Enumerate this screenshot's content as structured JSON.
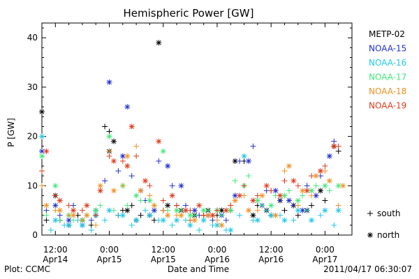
{
  "chart_data": {
    "type": "scatter",
    "title": "Hemispheric Power [GW]",
    "ylabel": "P [GW]",
    "xlabel": "Date and Time",
    "plot_credit": "Plot: CCMC",
    "timestamp": "2011/04/17 06:30:07",
    "ylim": [
      0,
      43
    ],
    "xlim_hours": [
      -3,
      39
    ],
    "yticks": [
      0,
      10,
      20,
      30,
      40
    ],
    "xticks": [
      {
        "h": 0,
        "line1": "12:00",
        "line2": "Apr14"
      },
      {
        "h": 12,
        "line1": "0:00",
        "line2": "Apr15"
      },
      {
        "h": 24,
        "line1": "12:00",
        "line2": "Apr15"
      },
      {
        "h": 36,
        "line1": "0:00",
        "line2": "Apr16"
      },
      {
        "h": 48,
        "line1": "12:00",
        "line2": "Apr16"
      },
      {
        "h": 60,
        "line1": "0:00",
        "line2": "Apr17"
      }
    ],
    "grid": false,
    "legend_position": "right",
    "marker_legend": [
      {
        "symbol": "+",
        "label": "south"
      },
      {
        "symbol": "*",
        "label": "north"
      }
    ],
    "series": [
      {
        "name": "METP-02",
        "color": "#000000",
        "south": [
          [
            -2,
            3
          ],
          [
            1,
            3
          ],
          [
            5,
            4
          ],
          [
            8,
            2
          ],
          [
            11,
            22
          ],
          [
            12,
            21
          ],
          [
            14,
            4
          ],
          [
            15,
            5
          ],
          [
            17,
            6
          ],
          [
            19,
            4
          ],
          [
            22,
            3
          ],
          [
            24,
            5
          ],
          [
            27,
            6
          ],
          [
            30,
            3
          ],
          [
            33,
            4
          ],
          [
            36,
            4
          ],
          [
            39,
            5
          ],
          [
            42,
            15
          ],
          [
            45,
            6
          ],
          [
            48,
            4
          ],
          [
            51,
            5
          ],
          [
            54,
            4
          ],
          [
            57,
            6
          ],
          [
            60,
            7
          ],
          [
            63,
            17
          ]
        ],
        "north": [
          [
            -3,
            25
          ],
          [
            0,
            8
          ],
          [
            3,
            2
          ],
          [
            6,
            3
          ],
          [
            9,
            4
          ],
          [
            12,
            17
          ],
          [
            13,
            19
          ],
          [
            16,
            5
          ],
          [
            18,
            3
          ],
          [
            21,
            4
          ],
          [
            23,
            39
          ],
          [
            25,
            6
          ],
          [
            28,
            5
          ],
          [
            31,
            4
          ],
          [
            34,
            5
          ],
          [
            37,
            5
          ],
          [
            40,
            15
          ],
          [
            44,
            4
          ],
          [
            47,
            5
          ],
          [
            50,
            7
          ],
          [
            53,
            6
          ],
          [
            56,
            5
          ],
          [
            59,
            9
          ],
          [
            62,
            18
          ]
        ]
      },
      {
        "name": "NOAA-15",
        "color": "#1f2fd0",
        "south": [
          [
            -2,
            5
          ],
          [
            1,
            4
          ],
          [
            4,
            6
          ],
          [
            8,
            3
          ],
          [
            11,
            11
          ],
          [
            14,
            13
          ],
          [
            17,
            12
          ],
          [
            20,
            7
          ],
          [
            23,
            15
          ],
          [
            26,
            10
          ],
          [
            29,
            6
          ],
          [
            32,
            4
          ],
          [
            35,
            3
          ],
          [
            38,
            3
          ],
          [
            41,
            15
          ],
          [
            44,
            18
          ],
          [
            47,
            9
          ],
          [
            50,
            7
          ],
          [
            53,
            6
          ],
          [
            56,
            10
          ],
          [
            59,
            12
          ],
          [
            62,
            19
          ]
        ],
        "north": [
          [
            -3,
            17
          ],
          [
            0,
            6
          ],
          [
            3,
            3
          ],
          [
            6,
            2
          ],
          [
            9,
            5
          ],
          [
            12,
            31
          ],
          [
            15,
            16
          ],
          [
            16,
            26
          ],
          [
            19,
            9
          ],
          [
            22,
            5
          ],
          [
            25,
            14
          ],
          [
            28,
            10
          ],
          [
            31,
            5
          ],
          [
            34,
            4
          ],
          [
            37,
            4
          ],
          [
            40,
            8
          ],
          [
            43,
            15
          ],
          [
            46,
            6
          ],
          [
            49,
            9
          ],
          [
            52,
            7
          ],
          [
            55,
            5
          ],
          [
            58,
            8
          ],
          [
            61,
            16
          ]
        ]
      },
      {
        "name": "NOAA-16",
        "color": "#20c8e8",
        "south": [
          [
            -1,
            1
          ],
          [
            2,
            2
          ],
          [
            5,
            3
          ],
          [
            8,
            1
          ],
          [
            11,
            3
          ],
          [
            14,
            4
          ],
          [
            17,
            2
          ],
          [
            20,
            5
          ],
          [
            23,
            3
          ],
          [
            26,
            2
          ],
          [
            29,
            3
          ],
          [
            32,
            1
          ],
          [
            35,
            2
          ],
          [
            38,
            1
          ],
          [
            41,
            4
          ],
          [
            44,
            3
          ],
          [
            47,
            5
          ],
          [
            50,
            4
          ],
          [
            53,
            3
          ],
          [
            56,
            5
          ],
          [
            59,
            4
          ],
          [
            62,
            2
          ]
        ],
        "north": [
          [
            -3,
            20
          ],
          [
            0,
            3
          ],
          [
            3,
            2
          ],
          [
            6,
            2
          ],
          [
            9,
            4
          ],
          [
            12,
            5
          ],
          [
            15,
            4
          ],
          [
            18,
            3
          ],
          [
            21,
            4
          ],
          [
            24,
            3
          ],
          [
            27,
            3
          ],
          [
            30,
            2
          ],
          [
            33,
            3
          ],
          [
            36,
            2
          ],
          [
            39,
            1
          ],
          [
            42,
            16
          ],
          [
            45,
            3
          ],
          [
            48,
            4
          ],
          [
            51,
            3
          ],
          [
            54,
            5
          ],
          [
            57,
            3
          ],
          [
            60,
            5
          ],
          [
            63,
            5
          ]
        ]
      },
      {
        "name": "NOAA-17",
        "color": "#40e878",
        "south": [
          [
            -2,
            4
          ],
          [
            1,
            3
          ],
          [
            4,
            3
          ],
          [
            7,
            4
          ],
          [
            10,
            6
          ],
          [
            13,
            5
          ],
          [
            16,
            6
          ],
          [
            19,
            7
          ],
          [
            22,
            6
          ],
          [
            25,
            5
          ],
          [
            28,
            5
          ],
          [
            31,
            4
          ],
          [
            34,
            5
          ],
          [
            37,
            4
          ],
          [
            40,
            11
          ],
          [
            43,
            12
          ],
          [
            46,
            6
          ],
          [
            49,
            8
          ],
          [
            52,
            9
          ],
          [
            55,
            8
          ],
          [
            58,
            10
          ],
          [
            61,
            9
          ]
        ],
        "north": [
          [
            -3,
            16
          ],
          [
            0,
            10
          ],
          [
            3,
            4
          ],
          [
            6,
            3
          ],
          [
            9,
            5
          ],
          [
            12,
            20
          ],
          [
            15,
            10
          ],
          [
            18,
            8
          ],
          [
            21,
            7
          ],
          [
            24,
            17
          ],
          [
            27,
            5
          ],
          [
            30,
            4
          ],
          [
            33,
            5
          ],
          [
            36,
            5
          ],
          [
            39,
            5
          ],
          [
            42,
            10
          ],
          [
            45,
            7
          ],
          [
            48,
            6
          ],
          [
            51,
            8
          ],
          [
            54,
            7
          ],
          [
            57,
            9
          ],
          [
            60,
            10
          ],
          [
            63,
            10
          ]
        ]
      },
      {
        "name": "NOAA-18",
        "color": "#f09020",
        "south": [
          [
            -3,
            10
          ],
          [
            0,
            5
          ],
          [
            3,
            4
          ],
          [
            6,
            3
          ],
          [
            9,
            2
          ],
          [
            12,
            17
          ],
          [
            15,
            10
          ],
          [
            18,
            18
          ],
          [
            21,
            8
          ],
          [
            24,
            5
          ],
          [
            27,
            4
          ],
          [
            30,
            3
          ],
          [
            33,
            4
          ],
          [
            36,
            3
          ],
          [
            39,
            6
          ],
          [
            42,
            8
          ],
          [
            45,
            5
          ],
          [
            48,
            9
          ],
          [
            51,
            13
          ],
          [
            54,
            6
          ],
          [
            57,
            8
          ],
          [
            60,
            13
          ],
          [
            63,
            6
          ]
        ],
        "north": [
          [
            -2,
            6
          ],
          [
            1,
            5
          ],
          [
            4,
            4
          ],
          [
            7,
            4
          ],
          [
            10,
            10
          ],
          [
            13,
            9
          ],
          [
            16,
            16
          ],
          [
            19,
            9
          ],
          [
            22,
            6
          ],
          [
            25,
            4
          ],
          [
            28,
            4
          ],
          [
            31,
            3
          ],
          [
            34,
            4
          ],
          [
            37,
            2
          ],
          [
            40,
            7
          ],
          [
            43,
            5
          ],
          [
            46,
            8
          ],
          [
            49,
            4
          ],
          [
            52,
            14
          ],
          [
            55,
            9
          ],
          [
            58,
            12
          ],
          [
            61,
            11
          ],
          [
            64,
            10
          ]
        ]
      },
      {
        "name": "NOAA-19",
        "color": "#e03818",
        "south": [
          [
            -3,
            13
          ],
          [
            0,
            8
          ],
          [
            3,
            6
          ],
          [
            6,
            5
          ],
          [
            9,
            4
          ],
          [
            12,
            16
          ],
          [
            15,
            15
          ],
          [
            18,
            16
          ],
          [
            21,
            10
          ],
          [
            24,
            7
          ],
          [
            27,
            6
          ],
          [
            30,
            5
          ],
          [
            33,
            4
          ],
          [
            36,
            5
          ],
          [
            39,
            6
          ],
          [
            42,
            10
          ],
          [
            45,
            8
          ],
          [
            48,
            9
          ],
          [
            51,
            11
          ],
          [
            54,
            10
          ],
          [
            57,
            12
          ],
          [
            60,
            14
          ],
          [
            63,
            18
          ]
        ],
        "north": [
          [
            -2,
            17
          ],
          [
            1,
            7
          ],
          [
            4,
            5
          ],
          [
            7,
            6
          ],
          [
            10,
            9
          ],
          [
            13,
            15
          ],
          [
            16,
            14
          ],
          [
            17,
            22
          ],
          [
            20,
            11
          ],
          [
            23,
            19
          ],
          [
            26,
            8
          ],
          [
            29,
            5
          ],
          [
            32,
            6
          ],
          [
            35,
            4
          ],
          [
            38,
            5
          ],
          [
            41,
            8
          ],
          [
            44,
            7
          ],
          [
            47,
            10
          ],
          [
            50,
            8
          ],
          [
            53,
            11
          ],
          [
            56,
            9
          ],
          [
            59,
            13
          ],
          [
            62,
            18
          ]
        ]
      }
    ]
  }
}
